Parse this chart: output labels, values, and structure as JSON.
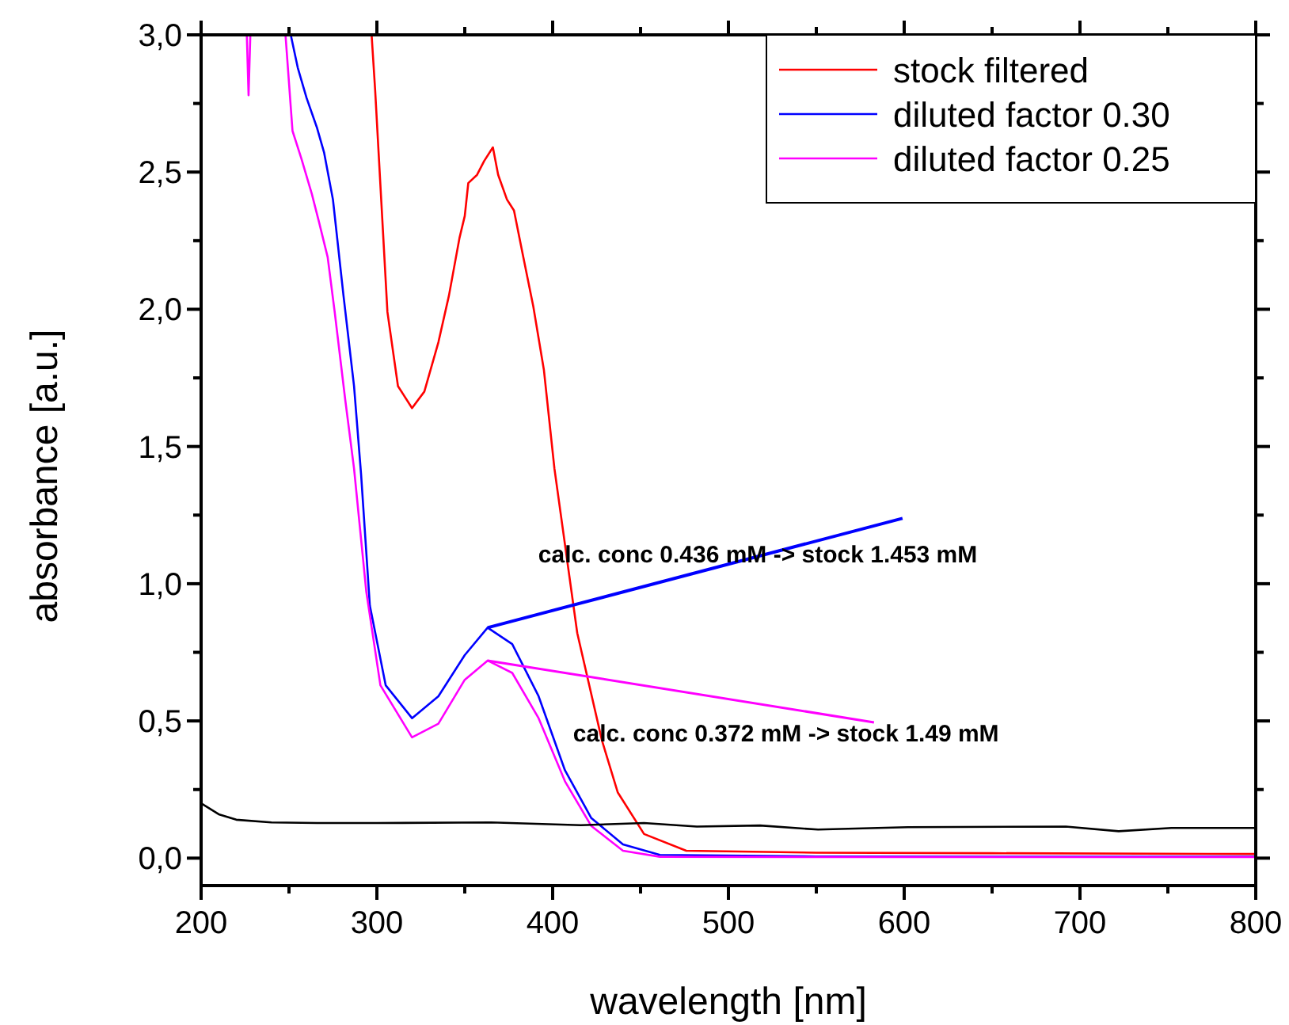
{
  "chart_data": {
    "type": "line",
    "xlabel": "wavelength [nm]",
    "ylabel": "absorbance [a.u.]",
    "xlim": [
      200,
      800
    ],
    "ylim": [
      -0.1,
      3.0
    ],
    "xticks": [
      200,
      {
        "value": 250,
        "label": null
      },
      300,
      {
        "value": 350,
        "label": null
      },
      400,
      {
        "value": 450,
        "label": null
      },
      500,
      {
        "value": 550,
        "label": null
      },
      600,
      {
        "value": 650,
        "label": null
      },
      700,
      {
        "value": 750,
        "label": null
      },
      800
    ],
    "yticks": [
      {
        "value": 0,
        "label": "0,0"
      },
      {
        "value": 0.25,
        "label": null
      },
      {
        "value": 0.5,
        "label": "0,5"
      },
      {
        "value": 0.75,
        "label": null
      },
      {
        "value": 1,
        "label": "1,0"
      },
      {
        "value": 1.25,
        "label": null
      },
      {
        "value": 1.5,
        "label": "1,5"
      },
      {
        "value": 1.75,
        "label": null
      },
      {
        "value": 2,
        "label": "2,0"
      },
      {
        "value": 2.25,
        "label": null
      },
      {
        "value": 2.5,
        "label": "2,5"
      },
      {
        "value": 2.75,
        "label": null
      },
      {
        "value": 3,
        "label": "3,0"
      }
    ],
    "grid": false,
    "legend": "top right",
    "marker": "none",
    "line_style": "solid",
    "series": [
      {
        "name": "stock filtered",
        "color": "#ff0000",
        "x": [
          297,
          299,
          306,
          312,
          320,
          327,
          335,
          341,
          347,
          350,
          352,
          357,
          361,
          366,
          369,
          374,
          378,
          383,
          389,
          395,
          401,
          414,
          428,
          437,
          452,
          476,
          550,
          650,
          800
        ],
        "values": [
          3.0,
          2.8,
          1.99,
          1.72,
          1.64,
          1.7,
          1.88,
          2.05,
          2.26,
          2.34,
          2.46,
          2.49,
          2.54,
          2.59,
          2.49,
          2.4,
          2.36,
          2.2,
          2.01,
          1.78,
          1.42,
          0.82,
          0.43,
          0.24,
          0.088,
          0.027,
          0.02,
          0.018,
          0.015
        ]
      },
      {
        "name": "diluted factor 0.30",
        "color": "#0000ff",
        "x": [
          251,
          255,
          260,
          266,
          270,
          275,
          281,
          287,
          291,
          296,
          305,
          320,
          335,
          350,
          363,
          377,
          392,
          407,
          422,
          440,
          461,
          550,
          650,
          800
        ],
        "values": [
          3.0,
          2.88,
          2.77,
          2.66,
          2.57,
          2.4,
          2.05,
          1.72,
          1.4,
          0.92,
          0.63,
          0.51,
          0.59,
          0.74,
          0.84,
          0.78,
          0.59,
          0.32,
          0.146,
          0.05,
          0.012,
          0.006,
          0.005,
          0.005
        ]
      },
      {
        "name": "diluted factor 0.25",
        "color": "#ff00ff",
        "x": [
          226,
          227,
          228,
          240,
          248,
          252,
          257,
          263,
          267,
          272,
          276,
          282,
          287,
          294,
          302,
          320,
          335,
          350,
          363,
          377,
          392,
          407,
          422,
          440,
          461,
          550,
          650,
          800
        ],
        "values": [
          3.0,
          2.78,
          3.0,
          null,
          3.0,
          2.65,
          2.55,
          2.42,
          2.32,
          2.19,
          1.99,
          1.67,
          1.42,
          0.97,
          0.63,
          0.44,
          0.49,
          0.65,
          0.72,
          0.675,
          0.51,
          0.28,
          0.117,
          0.027,
          0.005,
          0.004,
          0.004,
          0.004
        ]
      },
      {
        "color": "#000000",
        "x": [
          200,
          210,
          220,
          240,
          266,
          300,
          365,
          416,
          452,
          482,
          518,
          551,
          602,
          692,
          722,
          752,
          800
        ],
        "values": [
          0.2,
          0.16,
          0.14,
          0.13,
          0.128,
          0.128,
          0.13,
          0.12,
          0.128,
          0.115,
          0.119,
          0.104,
          0.113,
          0.115,
          0.098,
          0.11,
          0.11
        ]
      }
    ],
    "annotations": [
      {
        "text": "calc. conc 0.436 mM -> stock 1.453 mM",
        "x": 363,
        "y": 0.84
      },
      {
        "text": "calc. conc 0.372 mM -> stock 1.49 mM",
        "x": 363,
        "y": 0.72
      }
    ]
  }
}
